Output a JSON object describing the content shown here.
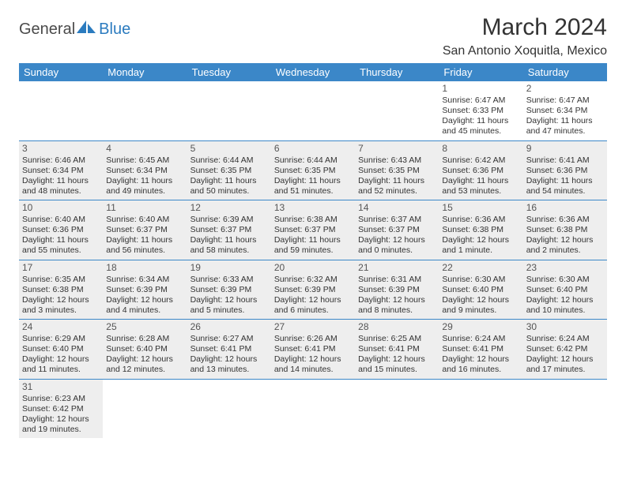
{
  "logo": {
    "text1": "General",
    "text2": "Blue"
  },
  "title": "March 2024",
  "subtitle": "San Antonio Xoquitla, Mexico",
  "header_bg": "#3b87c8",
  "header_fg": "#ffffff",
  "shade_bg": "#eeeeee",
  "divider_color": "#3b87c8",
  "text_color": "#333333",
  "font_family": "Arial, Helvetica, sans-serif",
  "day_names": [
    "Sunday",
    "Monday",
    "Tuesday",
    "Wednesday",
    "Thursday",
    "Friday",
    "Saturday"
  ],
  "weeks": [
    [
      {
        "empty": true
      },
      {
        "empty": true
      },
      {
        "empty": true
      },
      {
        "empty": true
      },
      {
        "empty": true
      },
      {
        "day": "1",
        "sunrise": "Sunrise: 6:47 AM",
        "sunset": "Sunset: 6:33 PM",
        "daylight1": "Daylight: 11 hours",
        "daylight2": "and 45 minutes."
      },
      {
        "day": "2",
        "sunrise": "Sunrise: 6:47 AM",
        "sunset": "Sunset: 6:34 PM",
        "daylight1": "Daylight: 11 hours",
        "daylight2": "and 47 minutes."
      }
    ],
    [
      {
        "day": "3",
        "sunrise": "Sunrise: 6:46 AM",
        "sunset": "Sunset: 6:34 PM",
        "daylight1": "Daylight: 11 hours",
        "daylight2": "and 48 minutes.",
        "shade": true
      },
      {
        "day": "4",
        "sunrise": "Sunrise: 6:45 AM",
        "sunset": "Sunset: 6:34 PM",
        "daylight1": "Daylight: 11 hours",
        "daylight2": "and 49 minutes.",
        "shade": true
      },
      {
        "day": "5",
        "sunrise": "Sunrise: 6:44 AM",
        "sunset": "Sunset: 6:35 PM",
        "daylight1": "Daylight: 11 hours",
        "daylight2": "and 50 minutes.",
        "shade": true
      },
      {
        "day": "6",
        "sunrise": "Sunrise: 6:44 AM",
        "sunset": "Sunset: 6:35 PM",
        "daylight1": "Daylight: 11 hours",
        "daylight2": "and 51 minutes.",
        "shade": true
      },
      {
        "day": "7",
        "sunrise": "Sunrise: 6:43 AM",
        "sunset": "Sunset: 6:35 PM",
        "daylight1": "Daylight: 11 hours",
        "daylight2": "and 52 minutes.",
        "shade": true
      },
      {
        "day": "8",
        "sunrise": "Sunrise: 6:42 AM",
        "sunset": "Sunset: 6:36 PM",
        "daylight1": "Daylight: 11 hours",
        "daylight2": "and 53 minutes.",
        "shade": true
      },
      {
        "day": "9",
        "sunrise": "Sunrise: 6:41 AM",
        "sunset": "Sunset: 6:36 PM",
        "daylight1": "Daylight: 11 hours",
        "daylight2": "and 54 minutes.",
        "shade": true
      }
    ],
    [
      {
        "day": "10",
        "sunrise": "Sunrise: 6:40 AM",
        "sunset": "Sunset: 6:36 PM",
        "daylight1": "Daylight: 11 hours",
        "daylight2": "and 55 minutes.",
        "shade": true
      },
      {
        "day": "11",
        "sunrise": "Sunrise: 6:40 AM",
        "sunset": "Sunset: 6:37 PM",
        "daylight1": "Daylight: 11 hours",
        "daylight2": "and 56 minutes.",
        "shade": true
      },
      {
        "day": "12",
        "sunrise": "Sunrise: 6:39 AM",
        "sunset": "Sunset: 6:37 PM",
        "daylight1": "Daylight: 11 hours",
        "daylight2": "and 58 minutes.",
        "shade": true
      },
      {
        "day": "13",
        "sunrise": "Sunrise: 6:38 AM",
        "sunset": "Sunset: 6:37 PM",
        "daylight1": "Daylight: 11 hours",
        "daylight2": "and 59 minutes.",
        "shade": true
      },
      {
        "day": "14",
        "sunrise": "Sunrise: 6:37 AM",
        "sunset": "Sunset: 6:37 PM",
        "daylight1": "Daylight: 12 hours",
        "daylight2": "and 0 minutes.",
        "shade": true
      },
      {
        "day": "15",
        "sunrise": "Sunrise: 6:36 AM",
        "sunset": "Sunset: 6:38 PM",
        "daylight1": "Daylight: 12 hours",
        "daylight2": "and 1 minute.",
        "shade": true
      },
      {
        "day": "16",
        "sunrise": "Sunrise: 6:36 AM",
        "sunset": "Sunset: 6:38 PM",
        "daylight1": "Daylight: 12 hours",
        "daylight2": "and 2 minutes.",
        "shade": true
      }
    ],
    [
      {
        "day": "17",
        "sunrise": "Sunrise: 6:35 AM",
        "sunset": "Sunset: 6:38 PM",
        "daylight1": "Daylight: 12 hours",
        "daylight2": "and 3 minutes.",
        "shade": true
      },
      {
        "day": "18",
        "sunrise": "Sunrise: 6:34 AM",
        "sunset": "Sunset: 6:39 PM",
        "daylight1": "Daylight: 12 hours",
        "daylight2": "and 4 minutes.",
        "shade": true
      },
      {
        "day": "19",
        "sunrise": "Sunrise: 6:33 AM",
        "sunset": "Sunset: 6:39 PM",
        "daylight1": "Daylight: 12 hours",
        "daylight2": "and 5 minutes.",
        "shade": true
      },
      {
        "day": "20",
        "sunrise": "Sunrise: 6:32 AM",
        "sunset": "Sunset: 6:39 PM",
        "daylight1": "Daylight: 12 hours",
        "daylight2": "and 6 minutes.",
        "shade": true
      },
      {
        "day": "21",
        "sunrise": "Sunrise: 6:31 AM",
        "sunset": "Sunset: 6:39 PM",
        "daylight1": "Daylight: 12 hours",
        "daylight2": "and 8 minutes.",
        "shade": true
      },
      {
        "day": "22",
        "sunrise": "Sunrise: 6:30 AM",
        "sunset": "Sunset: 6:40 PM",
        "daylight1": "Daylight: 12 hours",
        "daylight2": "and 9 minutes.",
        "shade": true
      },
      {
        "day": "23",
        "sunrise": "Sunrise: 6:30 AM",
        "sunset": "Sunset: 6:40 PM",
        "daylight1": "Daylight: 12 hours",
        "daylight2": "and 10 minutes.",
        "shade": true
      }
    ],
    [
      {
        "day": "24",
        "sunrise": "Sunrise: 6:29 AM",
        "sunset": "Sunset: 6:40 PM",
        "daylight1": "Daylight: 12 hours",
        "daylight2": "and 11 minutes.",
        "shade": true
      },
      {
        "day": "25",
        "sunrise": "Sunrise: 6:28 AM",
        "sunset": "Sunset: 6:40 PM",
        "daylight1": "Daylight: 12 hours",
        "daylight2": "and 12 minutes.",
        "shade": true
      },
      {
        "day": "26",
        "sunrise": "Sunrise: 6:27 AM",
        "sunset": "Sunset: 6:41 PM",
        "daylight1": "Daylight: 12 hours",
        "daylight2": "and 13 minutes.",
        "shade": true
      },
      {
        "day": "27",
        "sunrise": "Sunrise: 6:26 AM",
        "sunset": "Sunset: 6:41 PM",
        "daylight1": "Daylight: 12 hours",
        "daylight2": "and 14 minutes.",
        "shade": true
      },
      {
        "day": "28",
        "sunrise": "Sunrise: 6:25 AM",
        "sunset": "Sunset: 6:41 PM",
        "daylight1": "Daylight: 12 hours",
        "daylight2": "and 15 minutes.",
        "shade": true
      },
      {
        "day": "29",
        "sunrise": "Sunrise: 6:24 AM",
        "sunset": "Sunset: 6:41 PM",
        "daylight1": "Daylight: 12 hours",
        "daylight2": "and 16 minutes.",
        "shade": true
      },
      {
        "day": "30",
        "sunrise": "Sunrise: 6:24 AM",
        "sunset": "Sunset: 6:42 PM",
        "daylight1": "Daylight: 12 hours",
        "daylight2": "and 17 minutes.",
        "shade": true
      }
    ],
    [
      {
        "day": "31",
        "sunrise": "Sunrise: 6:23 AM",
        "sunset": "Sunset: 6:42 PM",
        "daylight1": "Daylight: 12 hours",
        "daylight2": "and 19 minutes.",
        "shade": true
      },
      {
        "empty": true
      },
      {
        "empty": true
      },
      {
        "empty": true
      },
      {
        "empty": true
      },
      {
        "empty": true
      },
      {
        "empty": true
      }
    ]
  ]
}
